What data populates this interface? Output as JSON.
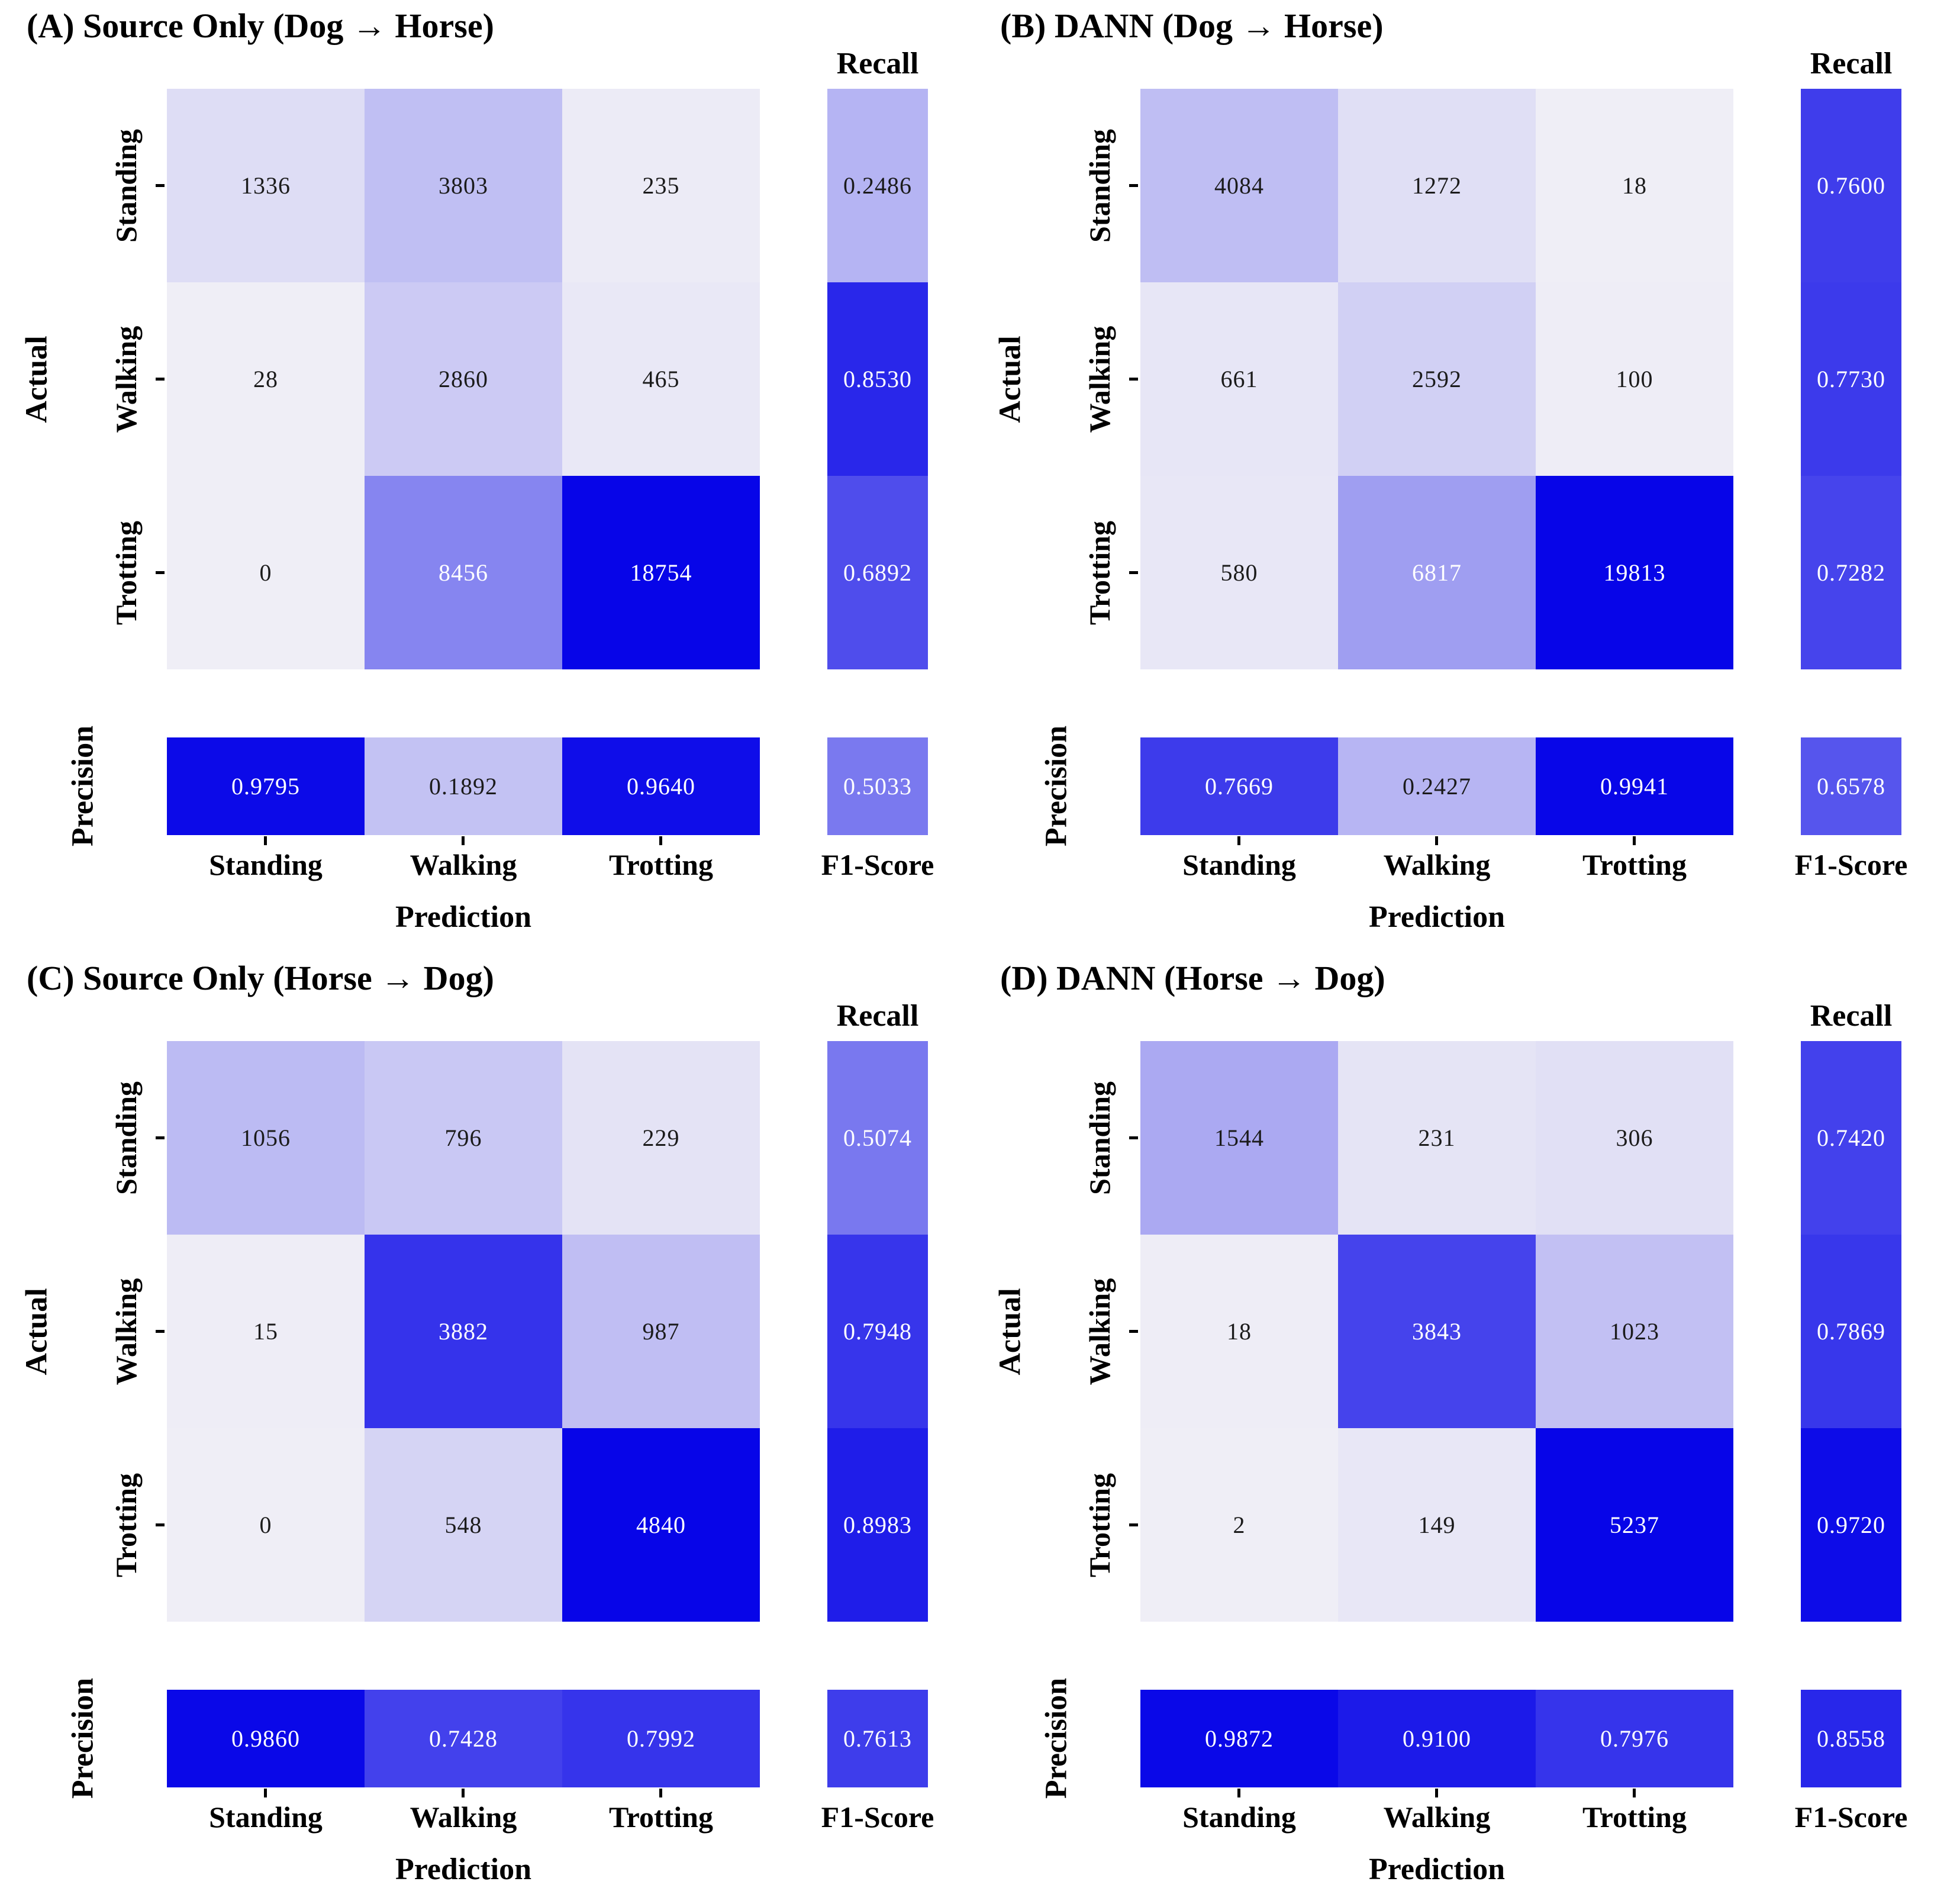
{
  "figure": {
    "labels": {
      "actual": "Actual",
      "prediction": "Prediction",
      "precision": "Precision",
      "recall": "Recall",
      "f1_score": "F1-Score"
    },
    "colormap": {
      "low": "#efeef6",
      "high": "#0705e8"
    },
    "annotation_text_dark": "#1b1b1b",
    "annotation_text_light": "#ffffff"
  },
  "chart_data": [
    {
      "type": "heatmap",
      "panel": "A",
      "title": "(A) Source Only (Dog → Horse)",
      "rows": [
        "Standing",
        "Walking",
        "Trotting"
      ],
      "cols": [
        "Standing",
        "Walking",
        "Trotting"
      ],
      "xlabel": "Prediction",
      "ylabel": "Actual",
      "matrix": [
        [
          1336,
          3803,
          235
        ],
        [
          28,
          2860,
          465
        ],
        [
          0,
          8456,
          18754
        ]
      ],
      "recall": [
        "0.2486",
        "0.8530",
        "0.6892"
      ],
      "precision": [
        "0.9795",
        "0.1892",
        "0.9640"
      ],
      "f1_score": "0.5033"
    },
    {
      "type": "heatmap",
      "panel": "B",
      "title": "(B) DANN (Dog → Horse)",
      "rows": [
        "Standing",
        "Walking",
        "Trotting"
      ],
      "cols": [
        "Standing",
        "Walking",
        "Trotting"
      ],
      "xlabel": "Prediction",
      "ylabel": "Actual",
      "matrix": [
        [
          4084,
          1272,
          18
        ],
        [
          661,
          2592,
          100
        ],
        [
          580,
          6817,
          19813
        ]
      ],
      "recall": [
        "0.7600",
        "0.7730",
        "0.7282"
      ],
      "precision": [
        "0.7669",
        "0.2427",
        "0.9941"
      ],
      "f1_score": "0.6578"
    },
    {
      "type": "heatmap",
      "panel": "C",
      "title": "(C) Source Only (Horse → Dog)",
      "rows": [
        "Standing",
        "Walking",
        "Trotting"
      ],
      "cols": [
        "Standing",
        "Walking",
        "Trotting"
      ],
      "xlabel": "Prediction",
      "ylabel": "Actual",
      "matrix": [
        [
          1056,
          796,
          229
        ],
        [
          15,
          3882,
          987
        ],
        [
          0,
          548,
          4840
        ]
      ],
      "recall": [
        "0.5074",
        "0.7948",
        "0.8983"
      ],
      "precision": [
        "0.9860",
        "0.7428",
        "0.7992"
      ],
      "f1_score": "0.7613"
    },
    {
      "type": "heatmap",
      "panel": "D",
      "title": "(D) DANN (Horse → Dog)",
      "rows": [
        "Standing",
        "Walking",
        "Trotting"
      ],
      "cols": [
        "Standing",
        "Walking",
        "Trotting"
      ],
      "xlabel": "Prediction",
      "ylabel": "Actual",
      "matrix": [
        [
          1544,
          231,
          306
        ],
        [
          18,
          3843,
          1023
        ],
        [
          2,
          149,
          5237
        ]
      ],
      "recall": [
        "0.7420",
        "0.7869",
        "0.9720"
      ],
      "precision": [
        "0.9872",
        "0.9100",
        "0.7976"
      ],
      "f1_score": "0.8558"
    }
  ]
}
